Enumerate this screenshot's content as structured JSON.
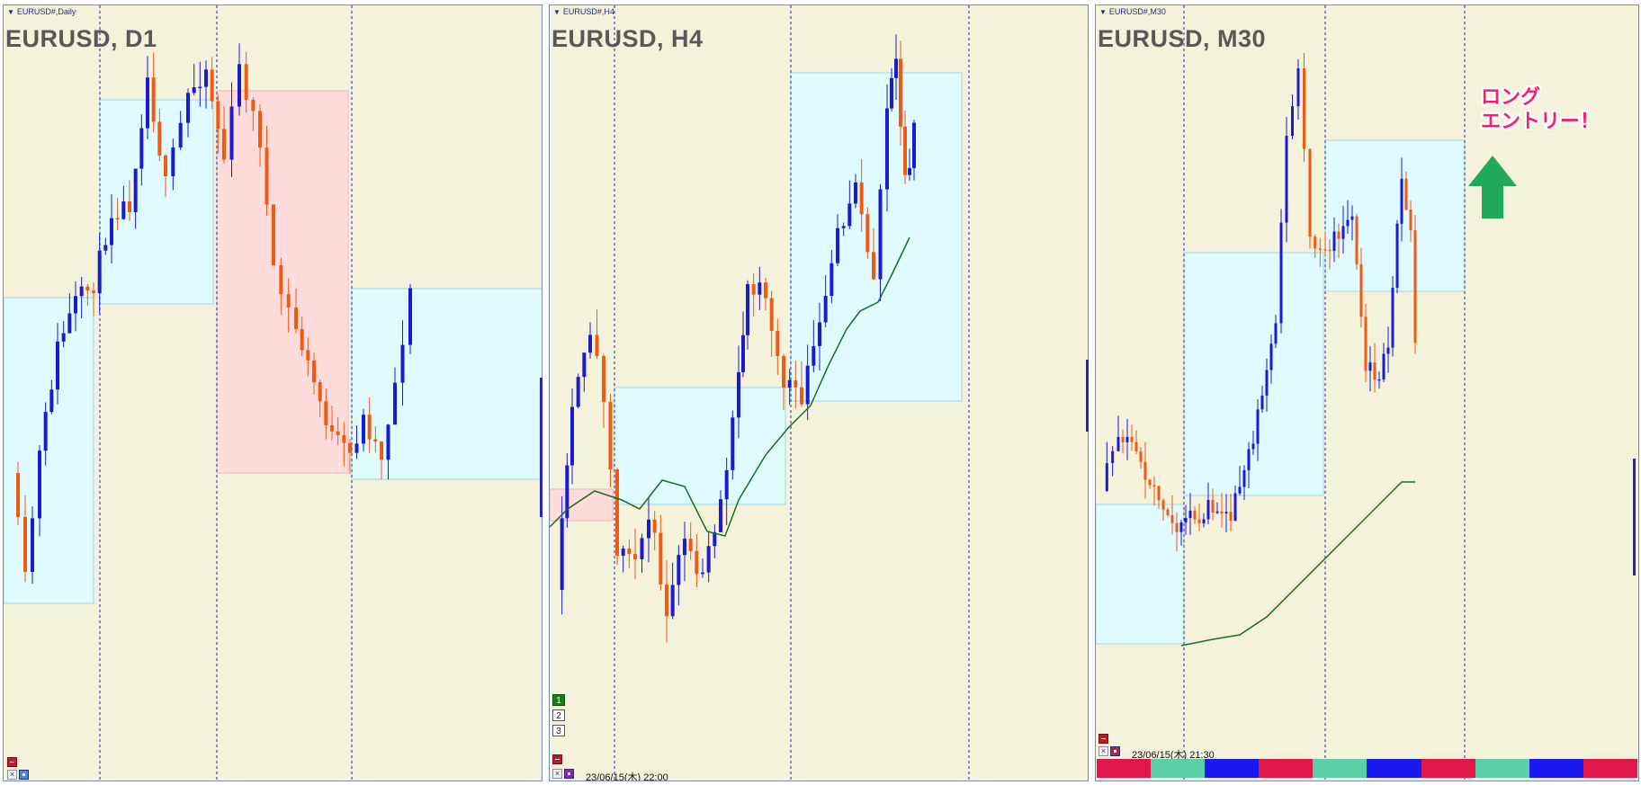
{
  "panels": [
    {
      "id": "d1",
      "tab_label": "EURUSD#,Daily",
      "title": "EURUSD, D1",
      "timestamp": ""
    },
    {
      "id": "h4",
      "tab_label": "EURUSD#,H4",
      "title": "EURUSD, H4",
      "timestamp": "23/06/15(木) 22:00"
    },
    {
      "id": "m30",
      "tab_label": "EURUSD#,M30",
      "title": "EURUSD, M30",
      "timestamp": "23/06/15(木) 21:30"
    }
  ],
  "annotation": {
    "line1": "ロング",
    "line2": "エントリー！"
  },
  "level_buttons": [
    "1",
    "2",
    "3"
  ],
  "colors": {
    "bull": "#1a1ad0",
    "bear": "#f05a14",
    "ma": "#1a6e1a",
    "bg": "#f5f2dc",
    "zone_cyan": "#dffbff",
    "zone_pink": "#ffdcdc",
    "accent_annotation": "#ff1a6e",
    "arrow": "#22aa5a"
  },
  "status_strip": [
    "#e0184a",
    "#5ccfa8",
    "#1a1aee",
    "#e0184a",
    "#5ccfa8",
    "#1a1aee",
    "#e0184a",
    "#5ccfa8",
    "#1a1aee",
    "#e0184a"
  ],
  "icons": [
    "minimize-icon",
    "close-icon",
    "up-arrow-icon"
  ]
}
